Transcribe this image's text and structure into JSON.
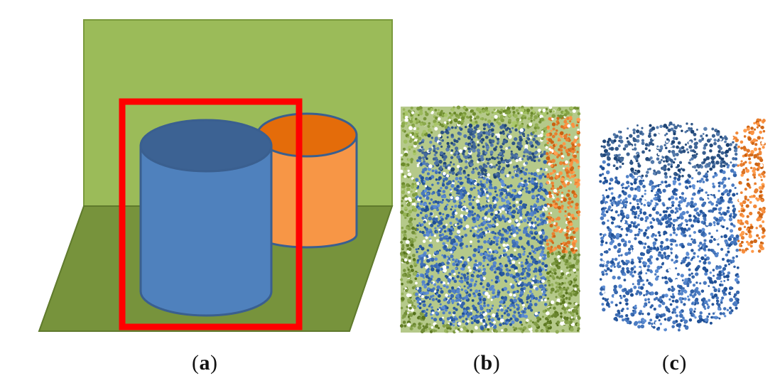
{
  "panels": [
    {
      "id": "a",
      "label": "a",
      "open": "(",
      "close": ")"
    },
    {
      "id": "b",
      "label": "b",
      "open": "(",
      "close": ")"
    },
    {
      "id": "c",
      "label": "c",
      "open": "(",
      "close": ")"
    }
  ],
  "colors": {
    "wall": "#9bbb59",
    "floor": "#77933c",
    "blue_cylinder": "#4f81bd",
    "blue_cylinder_top": "#3c6293",
    "blue_outline": "#3a5f8f",
    "orange_cylinder": "#f79646",
    "orange_cylinder_top": "#e46c0a",
    "selection_box": "#ff0000",
    "points_green": "#8aa84a",
    "points_blue": "#3f6fb5",
    "points_orange": "#e98030"
  }
}
